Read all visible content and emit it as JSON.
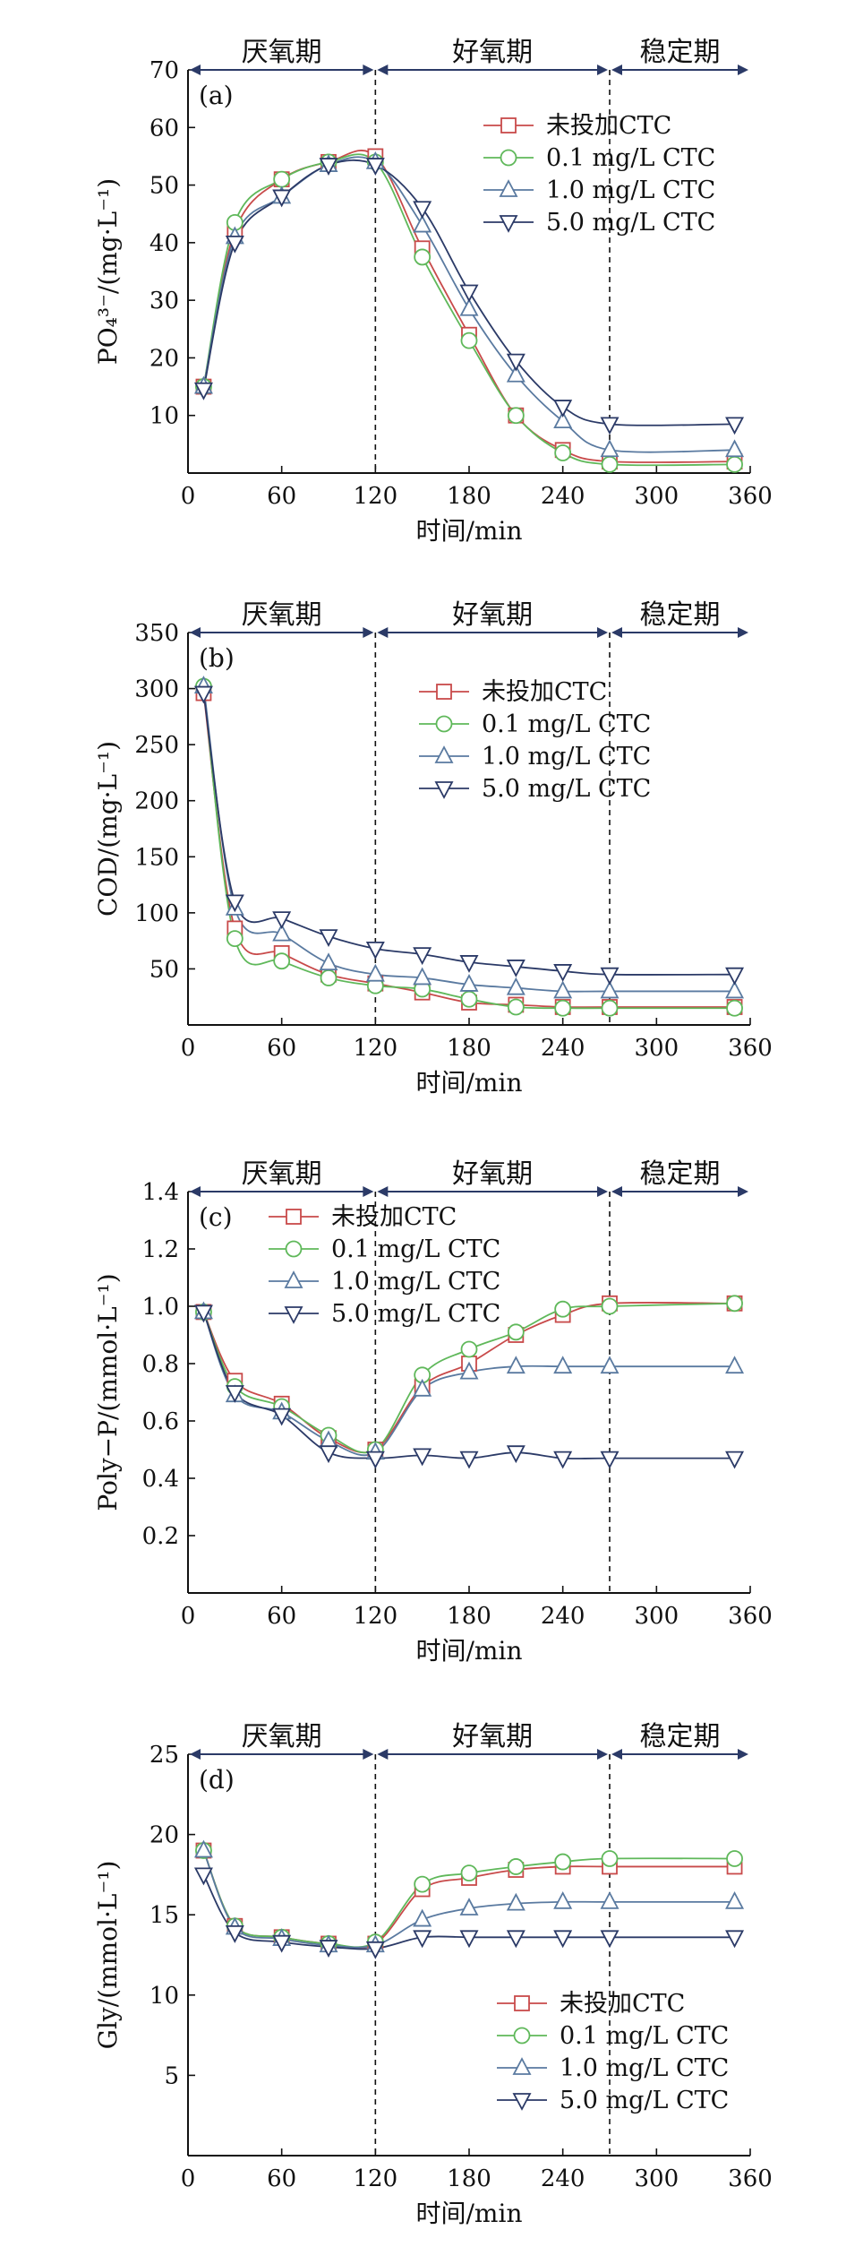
{
  "colors": {
    "none": "#c84a4a",
    "c01": "#5fb85a",
    "c10": "#5a7aa0",
    "c50": "#2b3a67",
    "phase": "#2b3a67"
  },
  "chart_data": [
    {
      "type": "line",
      "panel_label": "(a)",
      "ylabel": "PO₄³⁻/(mg·L⁻¹)",
      "xlabel": "时间/min",
      "xlim": [
        0,
        360
      ],
      "ylim": [
        0,
        70
      ],
      "xticks": [
        0,
        60,
        120,
        180,
        240,
        300,
        360
      ],
      "yticks": [
        10,
        20,
        30,
        40,
        50,
        60,
        70
      ],
      "phases": [
        "厌氧期",
        "好氧期",
        "稳定期"
      ],
      "phase_bounds": [
        0,
        120,
        270,
        360
      ],
      "legend_position": "top-right",
      "x": [
        10,
        30,
        60,
        90,
        120,
        150,
        180,
        210,
        240,
        270,
        350
      ],
      "series": [
        {
          "name": "未投加CTC",
          "color_key": "none",
          "marker": "square",
          "values": [
            15,
            42,
            51,
            54,
            55,
            39,
            24,
            10,
            4,
            2,
            2
          ]
        },
        {
          "name": "0.1 mg/L CTC",
          "color_key": "c01",
          "marker": "circle",
          "values": [
            15,
            43.5,
            51,
            54,
            54,
            37.5,
            23,
            10,
            3.5,
            1.5,
            1.5
          ]
        },
        {
          "name": "1.0 mg/L CTC",
          "color_key": "c10",
          "marker": "triangle-up",
          "values": [
            15,
            41,
            48,
            53.5,
            54,
            43,
            28.5,
            17,
            9,
            4,
            4
          ]
        },
        {
          "name": "5.0 mg/L CTC",
          "color_key": "c50",
          "marker": "triangle-down",
          "values": [
            14.5,
            40,
            48,
            53.5,
            53.5,
            46,
            31.5,
            19.5,
            11.5,
            8.5,
            8.5
          ]
        }
      ]
    },
    {
      "type": "line",
      "panel_label": "(b)",
      "ylabel": "COD/(mg·L⁻¹)",
      "xlabel": "时间/min",
      "xlim": [
        0,
        360
      ],
      "ylim": [
        0,
        350
      ],
      "xticks": [
        0,
        60,
        120,
        180,
        240,
        300,
        360
      ],
      "yticks": [
        50,
        100,
        150,
        200,
        250,
        300,
        350
      ],
      "phases": [
        "厌氧期",
        "好氧期",
        "稳定期"
      ],
      "phase_bounds": [
        0,
        120,
        270,
        360
      ],
      "legend_position": "top-right",
      "x": [
        10,
        30,
        60,
        90,
        120,
        150,
        180,
        210,
        240,
        270,
        350
      ],
      "series": [
        {
          "name": "未投加CTC",
          "color_key": "none",
          "marker": "square",
          "values": [
            296,
            86,
            64,
            45,
            37,
            29,
            20,
            18,
            16,
            16,
            16
          ]
        },
        {
          "name": "0.1 mg/L CTC",
          "color_key": "c01",
          "marker": "circle",
          "values": [
            302,
            77,
            57,
            42,
            35,
            32,
            23,
            16,
            15,
            15,
            15
          ]
        },
        {
          "name": "1.0 mg/L CTC",
          "color_key": "c10",
          "marker": "triangle-up",
          "values": [
            302,
            104,
            81,
            55,
            45,
            42,
            36,
            33,
            30,
            30,
            30
          ]
        },
        {
          "name": "5.0 mg/L CTC",
          "color_key": "c50",
          "marker": "triangle-down",
          "values": [
            296,
            110,
            95,
            79,
            68,
            63,
            56,
            52,
            48,
            45,
            45
          ]
        }
      ]
    },
    {
      "type": "line",
      "panel_label": "(c)",
      "ylabel": "Poly−P/(mmol·L⁻¹)",
      "xlabel": "时间/min",
      "xlim": [
        0,
        360
      ],
      "ylim": [
        0,
        1.4
      ],
      "xticks": [
        0,
        60,
        120,
        180,
        240,
        300,
        360
      ],
      "yticks": [
        0.2,
        0.4,
        0.6,
        0.8,
        1.0,
        1.2,
        1.4
      ],
      "ytick_labels": [
        "0.2",
        "0.4",
        "0.6",
        "0.8",
        "1.0",
        "1.2",
        "1.4"
      ],
      "phases": [
        "厌氧期",
        "好氧期",
        "稳定期"
      ],
      "phase_bounds": [
        0,
        120,
        270,
        360
      ],
      "legend_position": "top-left",
      "x": [
        10,
        30,
        60,
        90,
        120,
        150,
        180,
        210,
        240,
        270,
        350
      ],
      "series": [
        {
          "name": "未投加CTC",
          "color_key": "none",
          "marker": "square",
          "values": [
            0.98,
            0.74,
            0.66,
            0.54,
            0.5,
            0.72,
            0.8,
            0.9,
            0.97,
            1.01,
            1.01
          ]
        },
        {
          "name": "0.1 mg/L CTC",
          "color_key": "c01",
          "marker": "circle",
          "values": [
            0.98,
            0.72,
            0.65,
            0.55,
            0.5,
            0.76,
            0.85,
            0.91,
            0.99,
            1.0,
            1.01
          ]
        },
        {
          "name": "1.0 mg/L CTC",
          "color_key": "c10",
          "marker": "triangle-up",
          "values": [
            0.98,
            0.69,
            0.63,
            0.53,
            0.49,
            0.71,
            0.77,
            0.79,
            0.79,
            0.79,
            0.79
          ]
        },
        {
          "name": "5.0 mg/L CTC",
          "color_key": "c50",
          "marker": "triangle-down",
          "values": [
            0.98,
            0.7,
            0.62,
            0.49,
            0.47,
            0.48,
            0.47,
            0.49,
            0.47,
            0.47,
            0.47
          ]
        }
      ]
    },
    {
      "type": "line",
      "panel_label": "(d)",
      "ylabel": "Gly/(mmol·L⁻¹)",
      "xlabel": "时间/min",
      "xlim": [
        0,
        360
      ],
      "ylim": [
        0,
        25
      ],
      "xticks": [
        0,
        60,
        120,
        180,
        240,
        300,
        360
      ],
      "yticks": [
        5,
        10,
        15,
        20,
        25
      ],
      "phases": [
        "厌氧期",
        "好氧期",
        "稳定期"
      ],
      "phase_bounds": [
        0,
        120,
        270,
        360
      ],
      "legend_position": "bottom-right",
      "x": [
        10,
        30,
        60,
        90,
        120,
        150,
        180,
        210,
        240,
        270,
        350
      ],
      "series": [
        {
          "name": "未投加CTC",
          "color_key": "none",
          "marker": "square",
          "values": [
            19,
            14.3,
            13.6,
            13.2,
            13.2,
            16.6,
            17.3,
            17.8,
            18.0,
            18.0,
            18.0
          ]
        },
        {
          "name": "0.1 mg/L CTC",
          "color_key": "c01",
          "marker": "circle",
          "values": [
            19,
            14.3,
            13.6,
            13.2,
            13.3,
            16.9,
            17.6,
            18.0,
            18.3,
            18.5,
            18.5
          ]
        },
        {
          "name": "1.0 mg/L CTC",
          "color_key": "c10",
          "marker": "triangle-up",
          "values": [
            19,
            14.2,
            13.5,
            13.1,
            13.1,
            14.7,
            15.4,
            15.7,
            15.8,
            15.8,
            15.8
          ]
        },
        {
          "name": "5.0 mg/L CTC",
          "color_key": "c50",
          "marker": "triangle-down",
          "values": [
            17.5,
            13.9,
            13.3,
            13.0,
            12.9,
            13.6,
            13.6,
            13.6,
            13.6,
            13.6,
            13.6
          ]
        }
      ]
    }
  ]
}
